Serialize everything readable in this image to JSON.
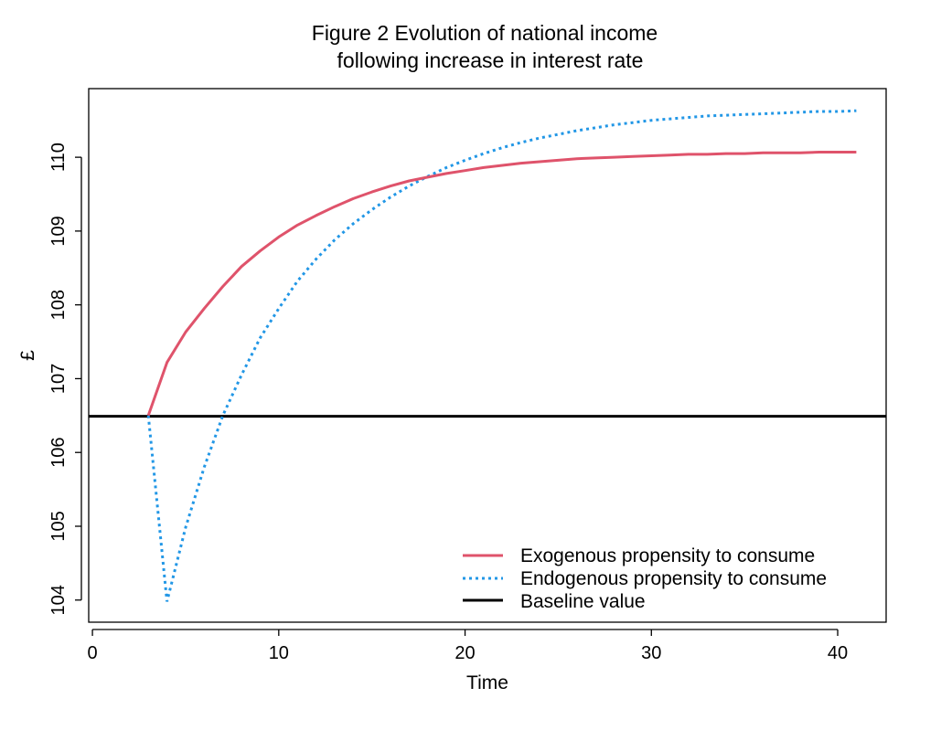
{
  "chart_data": {
    "type": "line",
    "title_line1": "Figure 2  Evolution of national income",
    "title_line2": "following increase in interest rate",
    "xlabel": "Time",
    "ylabel": "£",
    "xlim": [
      -0.2,
      42.6
    ],
    "ylim": [
      103.7,
      110.93
    ],
    "xticks": [
      "0",
      "10",
      "20",
      "30",
      "40"
    ],
    "yticks": [
      "104",
      "105",
      "106",
      "107",
      "108",
      "109",
      "110"
    ],
    "grid": false,
    "legend_position": "bottom-right",
    "colors": {
      "exogenous": "#DF536B",
      "endogenous": "#2297E6",
      "baseline": "#000000"
    },
    "series": [
      {
        "name": "Exogenous propensity to consume",
        "style": "solid",
        "x": [
          3,
          4,
          5,
          6,
          7,
          8,
          9,
          10,
          11,
          12,
          13,
          14,
          15,
          16,
          17,
          18,
          19,
          20,
          21,
          22,
          23,
          24,
          25,
          26,
          27,
          28,
          29,
          30,
          31,
          32,
          33,
          34,
          35,
          36,
          37,
          38,
          39,
          40,
          41
        ],
        "values": [
          106.5,
          107.22,
          107.63,
          107.95,
          108.25,
          108.52,
          108.73,
          108.92,
          109.08,
          109.21,
          109.33,
          109.44,
          109.53,
          109.61,
          109.68,
          109.73,
          109.78,
          109.82,
          109.86,
          109.89,
          109.92,
          109.94,
          109.96,
          109.98,
          109.99,
          110.0,
          110.01,
          110.02,
          110.03,
          110.04,
          110.04,
          110.05,
          110.05,
          110.06,
          110.06,
          110.06,
          110.07,
          110.07,
          110.07
        ]
      },
      {
        "name": "Endogenous propensity to consume",
        "style": "dotted",
        "x": [
          3,
          4,
          5,
          6,
          7,
          8,
          9,
          10,
          11,
          12,
          13,
          14,
          15,
          16,
          17,
          18,
          19,
          20,
          21,
          22,
          23,
          24,
          25,
          26,
          27,
          28,
          29,
          30,
          31,
          32,
          33,
          34,
          35,
          36,
          37,
          38,
          39,
          40,
          41
        ],
        "values": [
          106.5,
          103.98,
          104.98,
          105.8,
          106.5,
          107.05,
          107.55,
          107.95,
          108.32,
          108.62,
          108.88,
          109.1,
          109.29,
          109.46,
          109.61,
          109.74,
          109.86,
          109.96,
          110.05,
          110.13,
          110.2,
          110.26,
          110.31,
          110.36,
          110.4,
          110.44,
          110.47,
          110.5,
          110.52,
          110.54,
          110.56,
          110.57,
          110.58,
          110.59,
          110.6,
          110.61,
          110.62,
          110.62,
          110.63
        ]
      },
      {
        "name": "Baseline value",
        "style": "solid",
        "y": 106.49
      }
    ]
  }
}
